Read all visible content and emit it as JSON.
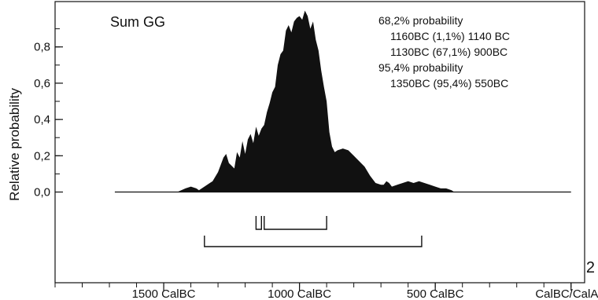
{
  "chart_data": {
    "type": "area",
    "title": "Sum GG",
    "xlabel": "",
    "ylabel": "Relative probability",
    "xlim": [
      1900,
      -50
    ],
    "ylim": [
      -0.5,
      1.05
    ],
    "x_tick_values": [
      1500,
      1000,
      500,
      0
    ],
    "x_tick_labels": [
      "1500 CalBC",
      "1000 CalBC",
      "500 CalBC",
      "CalBC/CalAD"
    ],
    "x_minor_step": 100,
    "y_tick_values": [
      0.0,
      0.2,
      0.4,
      0.6,
      0.8
    ],
    "y_tick_labels": [
      "0,0",
      "0,2",
      "0,4",
      "0,6",
      "0,8"
    ],
    "y_minor_step": 0.1,
    "curve_domain": [
      1680,
      0
    ],
    "series": [
      {
        "x": [
          1680,
          1450,
          1420,
          1400,
          1380,
          1370,
          1350,
          1330,
          1320,
          1300,
          1280,
          1270,
          1260,
          1240,
          1230,
          1220,
          1210,
          1200,
          1190,
          1180,
          1170,
          1160,
          1150,
          1140,
          1130,
          1120,
          1110,
          1100,
          1090,
          1080,
          1070,
          1060,
          1050,
          1040,
          1030,
          1020,
          1010,
          1000,
          990,
          980,
          970,
          960,
          950,
          940,
          930,
          920,
          910,
          900,
          890,
          880,
          870,
          860,
          840,
          820,
          800,
          780,
          760,
          740,
          720,
          700,
          690,
          680,
          670,
          660,
          640,
          620,
          600,
          580,
          560,
          540,
          520,
          500,
          480,
          460,
          440,
          430,
          0
        ],
        "values": [
          0,
          0,
          0.02,
          0.03,
          0.02,
          0.01,
          0.03,
          0.05,
          0.06,
          0.11,
          0.19,
          0.21,
          0.16,
          0.13,
          0.22,
          0.19,
          0.28,
          0.21,
          0.29,
          0.32,
          0.27,
          0.36,
          0.31,
          0.35,
          0.37,
          0.44,
          0.49,
          0.55,
          0.58,
          0.7,
          0.76,
          0.78,
          0.89,
          0.92,
          0.88,
          0.94,
          0.96,
          0.97,
          0.95,
          1.0,
          0.97,
          0.9,
          0.94,
          0.84,
          0.78,
          0.67,
          0.58,
          0.5,
          0.33,
          0.25,
          0.22,
          0.23,
          0.24,
          0.23,
          0.2,
          0.17,
          0.14,
          0.09,
          0.05,
          0.04,
          0.04,
          0.06,
          0.05,
          0.03,
          0.04,
          0.05,
          0.06,
          0.05,
          0.06,
          0.05,
          0.04,
          0.03,
          0.02,
          0.02,
          0.01,
          0,
          0
        ]
      }
    ],
    "ranges_68": [
      [
        1160,
        1140
      ],
      [
        1130,
        900
      ]
    ],
    "ranges_95": [
      [
        1350,
        550
      ]
    ],
    "annotations": [
      "68,2% probability",
      "1160BC (1,1%) 1140 BC",
      "1130BC (67,1%) 900BC",
      "95,4% probability",
      "1350BC (95,4%) 550BC"
    ],
    "grid": false,
    "legend": "none",
    "corner_label": "2",
    "fill_color": "#111111"
  }
}
